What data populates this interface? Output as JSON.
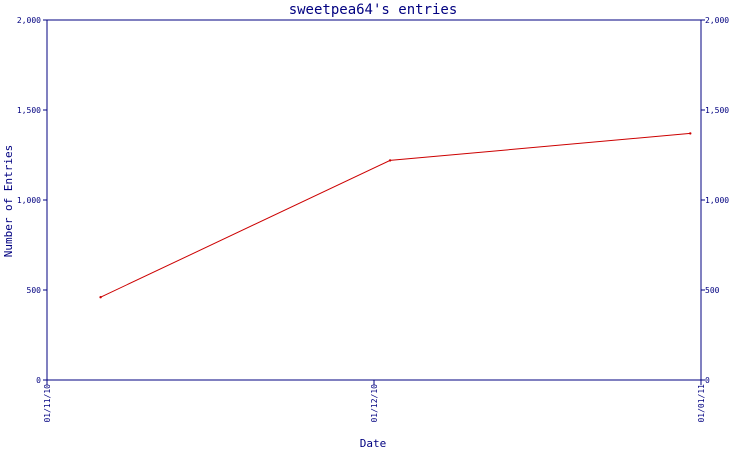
{
  "chart_data": {
    "type": "line",
    "title": "sweetpea64's entries",
    "xlabel": "Date",
    "ylabel": "Number of Entries",
    "x_tick_labels": [
      "01/11/10",
      "01/12/10",
      "01/01/11"
    ],
    "y_ticks": [
      {
        "value": 0,
        "label": "0"
      },
      {
        "value": 500,
        "label": "500"
      },
      {
        "value": 1000,
        "label": "1,000"
      },
      {
        "value": 1500,
        "label": "1,500"
      },
      {
        "value": 2000,
        "label": "2,000"
      }
    ],
    "ylim": [
      0,
      2000
    ],
    "xlim": [
      "2010-11-01",
      "2011-01-01"
    ],
    "series": [
      {
        "points": [
          {
            "x": "2010-11-06",
            "y": 460
          },
          {
            "x": "2010-12-03",
            "y": 1220
          },
          {
            "x": "2010-12-31",
            "y": 1370
          }
        ]
      }
    ],
    "grid": false,
    "legend": "none",
    "colors": {
      "axis": "#000080",
      "line": "#cc0000"
    }
  }
}
